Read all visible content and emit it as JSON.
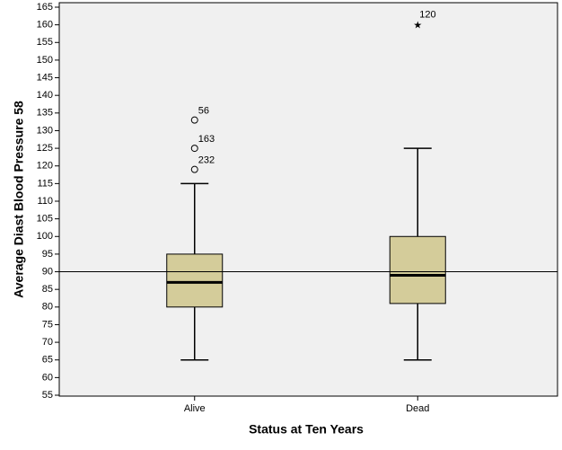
{
  "chart_data": {
    "type": "box",
    "x_label": "Status at Ten Years",
    "y_label": "Average Diast Blood Pressure 58",
    "categories": [
      "Alive",
      "Dead"
    ],
    "boxes": [
      {
        "min": 65,
        "q1": 80,
        "median": 87,
        "q3": 95,
        "max": 115,
        "outliers": [
          {
            "value": 133,
            "label": "56"
          },
          {
            "value": 125,
            "label": "163"
          },
          {
            "value": 119,
            "label": "232"
          }
        ],
        "extremes": []
      },
      {
        "min": 65,
        "q1": 81,
        "median": 89,
        "q3": 100,
        "max": 125,
        "outliers": [],
        "extremes": [
          {
            "value": 160,
            "label": "120"
          }
        ]
      }
    ],
    "color": "#d4cc9a",
    "ref_line": 90,
    "ylim": [
      55,
      165
    ],
    "yticks": [
      55,
      60,
      65,
      70,
      75,
      80,
      85,
      90,
      95,
      100,
      105,
      110,
      115,
      120,
      125,
      130,
      135,
      140,
      145,
      150,
      155,
      160,
      165
    ]
  }
}
